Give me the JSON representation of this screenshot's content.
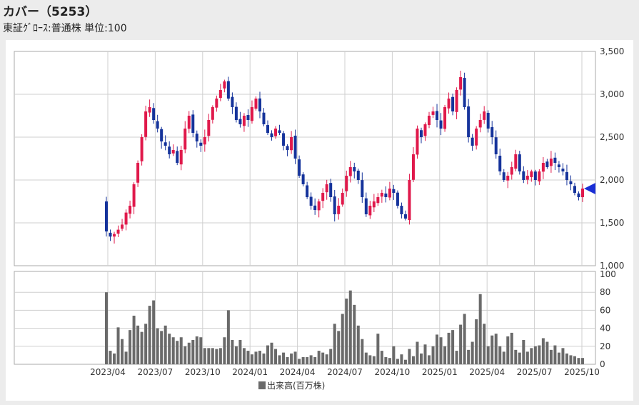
{
  "header": {
    "title": "カバー（5253）",
    "subtitle": "東証ｸﾞﾛｰｽ:普通株 単位:100"
  },
  "chart_data": [
    {
      "type": "candlestick",
      "title": "",
      "ylim": [
        1000,
        3500
      ],
      "y_ticks": [
        "3,500",
        "3,000",
        "2,500",
        "2,000",
        "1,500",
        "1,000"
      ],
      "x_ticks": [
        "2023/04",
        "2023/07",
        "2023/10",
        "2024/01",
        "2024/04",
        "2024/07",
        "2024/10",
        "2025/01",
        "2025/04",
        "2025/07",
        "2025/10"
      ],
      "colors": {
        "up": "#e0194b",
        "down": "#15339b",
        "marker": "#1a2fd6"
      },
      "last_price": 1900,
      "weekly_close": [
        1400,
        1340,
        1370,
        1420,
        1480,
        1620,
        1700,
        1950,
        2200,
        2500,
        2800,
        2850,
        2700,
        2600,
        2450,
        2400,
        2300,
        2350,
        2200,
        2350,
        2600,
        2750,
        2550,
        2450,
        2400,
        2500,
        2700,
        2850,
        2950,
        3050,
        3150,
        2950,
        2850,
        2700,
        2650,
        2750,
        2700,
        2850,
        2950,
        2800,
        2650,
        2550,
        2500,
        2600,
        2550,
        2400,
        2350,
        2500,
        2250,
        2050,
        1950,
        1800,
        1700,
        1650,
        1750,
        1850,
        1950,
        1800,
        1600,
        1700,
        1850,
        2050,
        2150,
        2100,
        2000,
        1800,
        1600,
        1700,
        1750,
        1800,
        1850,
        1800,
        1900,
        1850,
        1700,
        1600,
        1550,
        2000,
        2300,
        2600,
        2500,
        2650,
        2750,
        2800,
        2700,
        2600,
        2850,
        2950,
        2800,
        3050,
        3200,
        2850,
        2500,
        2400,
        2600,
        2700,
        2800,
        2600,
        2500,
        2300,
        2100,
        2000,
        2050,
        2150,
        2300,
        2100,
        2000,
        2050,
        2100,
        2000,
        2100,
        2200,
        2150,
        2250,
        2200,
        2150,
        2100,
        2000,
        1950,
        1850,
        1800,
        1900
      ],
      "volume": {
        "label": "出来高(百万株)",
        "ylim": [
          0,
          100
        ],
        "y_ticks": [
          "100",
          "80",
          "60",
          "40",
          "20",
          "0"
        ],
        "color": "#6a6a6a",
        "values": [
          80,
          15,
          12,
          41,
          28,
          14,
          38,
          54,
          43,
          36,
          45,
          65,
          71,
          40,
          37,
          43,
          34,
          30,
          26,
          30,
          20,
          24,
          27,
          31,
          30,
          18,
          18,
          18,
          17,
          18,
          30,
          60,
          27,
          20,
          27,
          18,
          15,
          11,
          14,
          15,
          12,
          21,
          24,
          17,
          10,
          13,
          8,
          12,
          14,
          6,
          8,
          8,
          10,
          8,
          15,
          13,
          11,
          17,
          45,
          37,
          56,
          73,
          82,
          66,
          43,
          28,
          13,
          10,
          9,
          34,
          15,
          8,
          7,
          20,
          6,
          11,
          5,
          17,
          9,
          25,
          12,
          22,
          10,
          20,
          33,
          30,
          20,
          35,
          38,
          15,
          44,
          56,
          16,
          25,
          50,
          78,
          45,
          20,
          32,
          34,
          20,
          14,
          31,
          35,
          16,
          13,
          27,
          14,
          18,
          20,
          21,
          29,
          25,
          16,
          21,
          13,
          18,
          12,
          10,
          9,
          7,
          7
        ]
      }
    }
  ]
}
